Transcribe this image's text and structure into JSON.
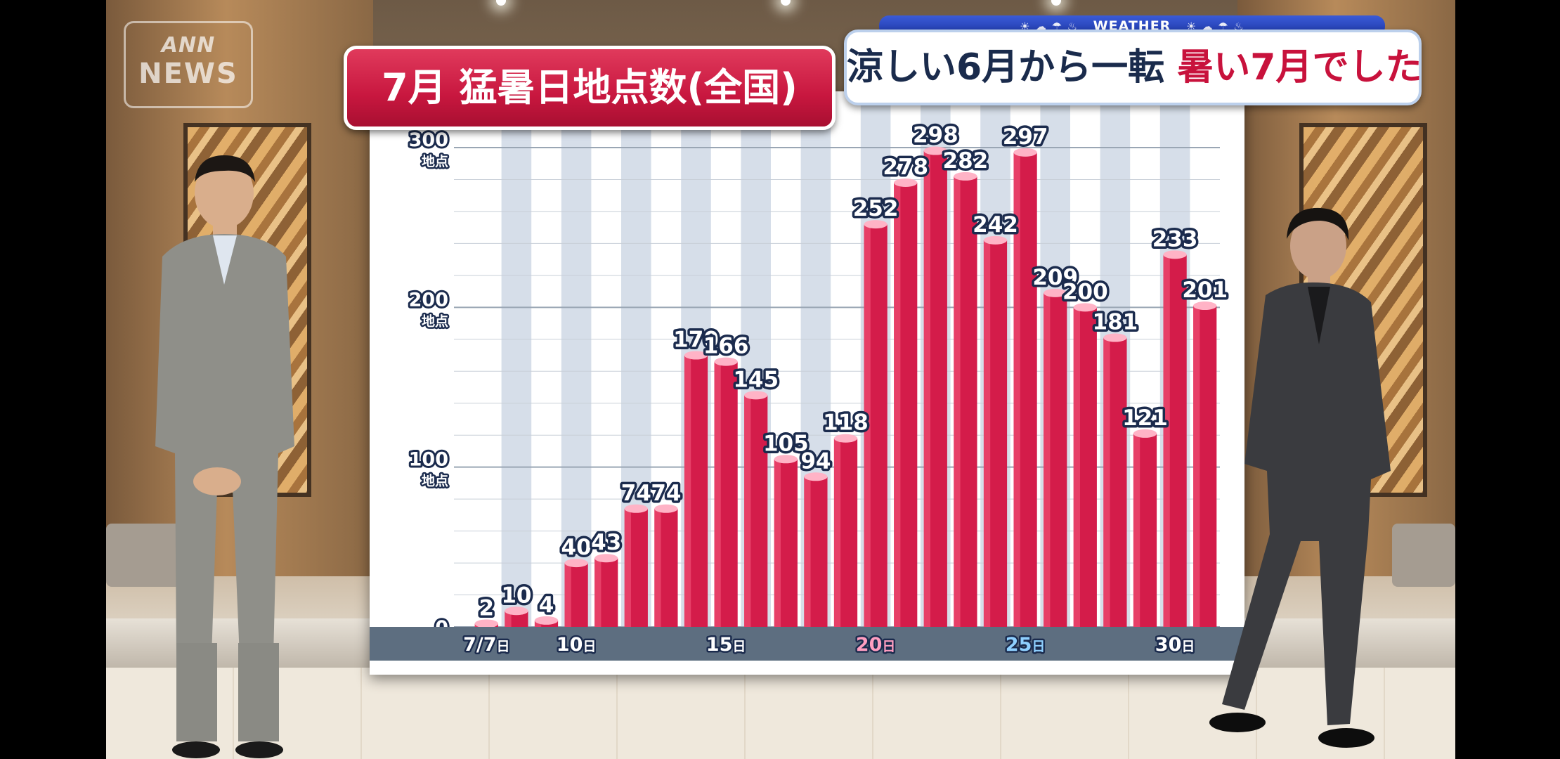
{
  "logo": {
    "line1": "ANN",
    "line2": "NEWS"
  },
  "weather": {
    "strip_label": "WEATHER",
    "headline_part1": "涼しい6月から一転",
    "headline_part2": "暑い7月でした",
    "colors": {
      "strip": "#2440b8",
      "headline_dark": "#1a2b4c",
      "headline_red": "#c8123c"
    }
  },
  "chart_title": "7月 猛暑日地点数(全国)",
  "chart_data": {
    "type": "bar",
    "title": "7月 猛暑日地点数(全国)",
    "categories": [
      "7/7",
      "7/8",
      "7/9",
      "7/10",
      "7/11",
      "7/12",
      "7/13",
      "7/14",
      "7/15",
      "7/16",
      "7/17",
      "7/18",
      "7/19",
      "7/20",
      "7/21",
      "7/22",
      "7/23",
      "7/24",
      "7/25",
      "7/26",
      "7/27",
      "7/28",
      "7/29",
      "7/30",
      "7/31"
    ],
    "values": [
      2,
      10,
      4,
      40,
      43,
      74,
      74,
      170,
      166,
      145,
      105,
      94,
      118,
      252,
      278,
      298,
      282,
      242,
      297,
      209,
      200,
      181,
      121,
      233,
      201
    ],
    "ylim": [
      0,
      300
    ],
    "yticks": [
      {
        "value": 0,
        "label": "0",
        "unit": ""
      },
      {
        "value": 100,
        "label": "100",
        "unit": "地点"
      },
      {
        "value": 200,
        "label": "200",
        "unit": "地点"
      },
      {
        "value": 300,
        "label": "300",
        "unit": "地点"
      }
    ],
    "xticks": [
      {
        "index": 0,
        "label": "7/7",
        "unit": "日",
        "color": "#ffffff"
      },
      {
        "index": 3,
        "label": "10",
        "unit": "日",
        "color": "#ffffff"
      },
      {
        "index": 8,
        "label": "15",
        "unit": "日",
        "color": "#ffffff"
      },
      {
        "index": 13,
        "label": "20",
        "unit": "日",
        "color": "#ff9ec0"
      },
      {
        "index": 18,
        "label": "25",
        "unit": "日",
        "color": "#8fd0ff"
      },
      {
        "index": 23,
        "label": "30",
        "unit": "日",
        "color": "#ffffff"
      }
    ],
    "grid": true,
    "bar_color": "#d41c4a"
  }
}
